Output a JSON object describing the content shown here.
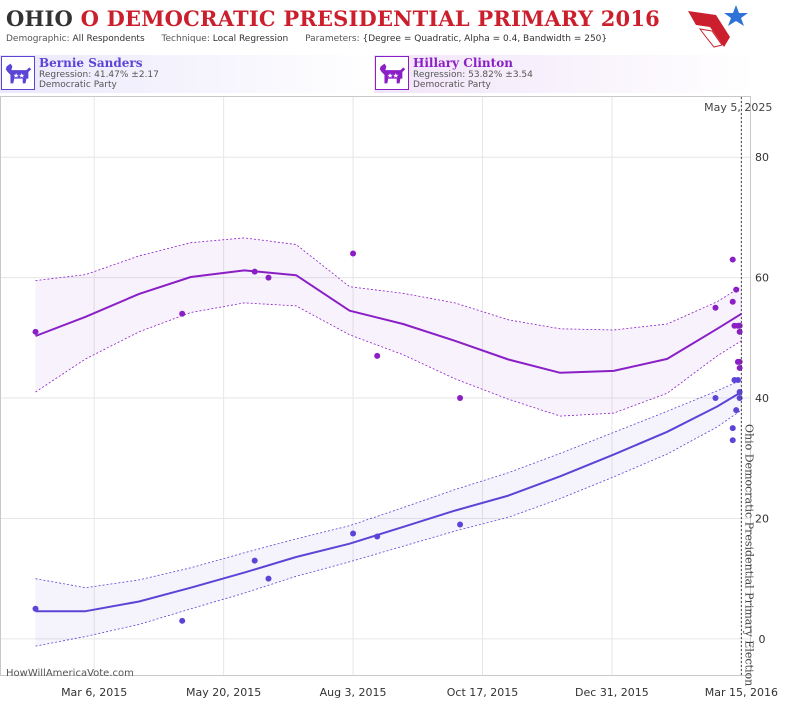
{
  "header": {
    "title_state": "OHIO",
    "title_rest": "O DEMOCRATIC PRESIDENTIAL PRIMARY 2016",
    "demographic_label": "Demographic:",
    "demographic_value": "All Respondents",
    "technique_label": "Technique:",
    "technique_value": "Local Regression",
    "parameters_label": "Parameters:",
    "parameters_value": "{Degree = Quadratic, Alpha = 0.4, Bandwidth = 250}"
  },
  "legend": [
    {
      "name": "Bernie Sanders",
      "regression": "Regression: 41.47% ±2.17",
      "party": "Democratic Party",
      "color": "#5a45d6"
    },
    {
      "name": "Hillary Clinton",
      "regression": "Regression: 53.82% ±3.54",
      "party": "Democratic Party",
      "color": "#8a1fc6"
    }
  ],
  "watermark": "HowWillAmericaVote.com",
  "colors": {
    "title_red": "#cc1f2d",
    "sanders": "#5a45d6",
    "clinton": "#8a1fc6",
    "grid": "#e6e6e6"
  },
  "chart_data": {
    "type": "scatter",
    "x_axis_type": "date",
    "xlim": [
      "2015-01-11",
      "2016-03-20"
    ],
    "ylim": [
      -6,
      90
    ],
    "x_ticks": [
      "2015-03-06",
      "2015-05-20",
      "2015-08-03",
      "2015-10-17",
      "2015-12-31",
      "2016-03-15"
    ],
    "x_tick_labels": [
      "Mar 6, 2015",
      "May 20, 2015",
      "Aug 3, 2015",
      "Oct 17, 2015",
      "Dec 31, 2015",
      "Mar 15, 2016"
    ],
    "y_ticks": [
      0,
      20,
      40,
      60,
      80
    ],
    "grid": true,
    "annotations": [
      {
        "date": "2016-03-15",
        "text": "Ohio Democratic Presidential Primary Election"
      },
      {
        "date": "2016-03-15",
        "text": "May 5, 2025"
      }
    ],
    "series": [
      {
        "name": "Hillary Clinton",
        "color": "#8a1fc6",
        "points": [
          {
            "x": "2015-01-31",
            "y": 51
          },
          {
            "x": "2015-04-26",
            "y": 54
          },
          {
            "x": "2015-06-07",
            "y": 61
          },
          {
            "x": "2015-06-15",
            "y": 60
          },
          {
            "x": "2015-08-03",
            "y": 64
          },
          {
            "x": "2015-08-17",
            "y": 47
          },
          {
            "x": "2015-10-04",
            "y": 40
          },
          {
            "x": "2016-02-29",
            "y": 55
          },
          {
            "x": "2016-03-10",
            "y": 63
          },
          {
            "x": "2016-03-10",
            "y": 56
          },
          {
            "x": "2016-03-11",
            "y": 52
          },
          {
            "x": "2016-03-12",
            "y": 58
          },
          {
            "x": "2016-03-13",
            "y": 52
          },
          {
            "x": "2016-03-13",
            "y": 46
          },
          {
            "x": "2016-03-14",
            "y": 52
          },
          {
            "x": "2016-03-14",
            "y": 51
          },
          {
            "x": "2016-03-14",
            "y": 46
          },
          {
            "x": "2016-03-14",
            "y": 45
          }
        ],
        "regression": [
          {
            "x": "2015-01-31",
            "y": 50.3
          },
          {
            "x": "2015-03-01",
            "y": 53.5
          },
          {
            "x": "2015-04-01",
            "y": 57.3
          },
          {
            "x": "2015-05-01",
            "y": 60.1
          },
          {
            "x": "2015-06-01",
            "y": 61.2
          },
          {
            "x": "2015-07-01",
            "y": 60.4
          },
          {
            "x": "2015-08-01",
            "y": 54.5
          },
          {
            "x": "2015-09-01",
            "y": 52.3
          },
          {
            "x": "2015-10-01",
            "y": 49.5
          },
          {
            "x": "2015-11-01",
            "y": 46.4
          },
          {
            "x": "2015-12-01",
            "y": 44.2
          },
          {
            "x": "2016-01-01",
            "y": 44.5
          },
          {
            "x": "2016-02-01",
            "y": 46.5
          },
          {
            "x": "2016-03-01",
            "y": 51.5
          },
          {
            "x": "2016-03-15",
            "y": 54.0
          }
        ],
        "upper": [
          {
            "x": "2015-01-31",
            "y": 59.5
          },
          {
            "x": "2015-03-01",
            "y": 60.5
          },
          {
            "x": "2015-04-01",
            "y": 63.6
          },
          {
            "x": "2015-05-01",
            "y": 65.8
          },
          {
            "x": "2015-06-01",
            "y": 66.6
          },
          {
            "x": "2015-07-01",
            "y": 65.5
          },
          {
            "x": "2015-08-01",
            "y": 58.5
          },
          {
            "x": "2015-09-01",
            "y": 57.4
          },
          {
            "x": "2015-10-01",
            "y": 55.8
          },
          {
            "x": "2015-11-01",
            "y": 53.0
          },
          {
            "x": "2015-12-01",
            "y": 51.5
          },
          {
            "x": "2016-01-01",
            "y": 51.3
          },
          {
            "x": "2016-02-01",
            "y": 52.3
          },
          {
            "x": "2016-03-01",
            "y": 56.0
          },
          {
            "x": "2016-03-15",
            "y": 58.5
          }
        ],
        "lower": [
          {
            "x": "2015-01-31",
            "y": 41.0
          },
          {
            "x": "2015-03-01",
            "y": 46.5
          },
          {
            "x": "2015-04-01",
            "y": 51.0
          },
          {
            "x": "2015-05-01",
            "y": 54.2
          },
          {
            "x": "2015-06-01",
            "y": 55.8
          },
          {
            "x": "2015-07-01",
            "y": 55.3
          },
          {
            "x": "2015-08-01",
            "y": 50.5
          },
          {
            "x": "2015-09-01",
            "y": 47.2
          },
          {
            "x": "2015-10-01",
            "y": 43.2
          },
          {
            "x": "2015-11-01",
            "y": 39.8
          },
          {
            "x": "2015-12-01",
            "y": 37.0
          },
          {
            "x": "2016-01-01",
            "y": 37.5
          },
          {
            "x": "2016-02-01",
            "y": 40.8
          },
          {
            "x": "2016-03-01",
            "y": 47.0
          },
          {
            "x": "2016-03-15",
            "y": 49.5
          }
        ]
      },
      {
        "name": "Bernie Sanders",
        "color": "#5a45d6",
        "points": [
          {
            "x": "2015-01-31",
            "y": 5
          },
          {
            "x": "2015-04-26",
            "y": 3
          },
          {
            "x": "2015-06-07",
            "y": 13
          },
          {
            "x": "2015-06-15",
            "y": 10
          },
          {
            "x": "2015-08-03",
            "y": 17.5
          },
          {
            "x": "2015-08-17",
            "y": 17
          },
          {
            "x": "2015-10-04",
            "y": 19
          },
          {
            "x": "2016-02-29",
            "y": 40
          },
          {
            "x": "2016-03-10",
            "y": 35
          },
          {
            "x": "2016-03-10",
            "y": 33
          },
          {
            "x": "2016-03-11",
            "y": 43
          },
          {
            "x": "2016-03-12",
            "y": 38
          },
          {
            "x": "2016-03-13",
            "y": 43
          },
          {
            "x": "2016-03-14",
            "y": 41
          },
          {
            "x": "2016-03-14",
            "y": 40
          }
        ],
        "regression": [
          {
            "x": "2015-01-31",
            "y": 4.6
          },
          {
            "x": "2015-03-01",
            "y": 4.6
          },
          {
            "x": "2015-04-01",
            "y": 6.2
          },
          {
            "x": "2015-05-01",
            "y": 8.5
          },
          {
            "x": "2015-06-01",
            "y": 11.0
          },
          {
            "x": "2015-07-01",
            "y": 13.6
          },
          {
            "x": "2015-08-01",
            "y": 15.8
          },
          {
            "x": "2015-09-01",
            "y": 18.6
          },
          {
            "x": "2015-10-01",
            "y": 21.3
          },
          {
            "x": "2015-11-01",
            "y": 23.8
          },
          {
            "x": "2015-12-01",
            "y": 27.0
          },
          {
            "x": "2016-01-01",
            "y": 30.6
          },
          {
            "x": "2016-02-01",
            "y": 34.4
          },
          {
            "x": "2016-03-01",
            "y": 38.6
          },
          {
            "x": "2016-03-15",
            "y": 41.0
          }
        ],
        "upper": [
          {
            "x": "2015-01-31",
            "y": 10.0
          },
          {
            "x": "2015-03-01",
            "y": 8.5
          },
          {
            "x": "2015-04-01",
            "y": 9.8
          },
          {
            "x": "2015-05-01",
            "y": 11.8
          },
          {
            "x": "2015-06-01",
            "y": 14.3
          },
          {
            "x": "2015-07-01",
            "y": 16.6
          },
          {
            "x": "2015-08-01",
            "y": 18.8
          },
          {
            "x": "2015-09-01",
            "y": 21.8
          },
          {
            "x": "2015-10-01",
            "y": 24.8
          },
          {
            "x": "2015-11-01",
            "y": 27.6
          },
          {
            "x": "2015-12-01",
            "y": 30.8
          },
          {
            "x": "2016-01-01",
            "y": 34.3
          },
          {
            "x": "2016-02-01",
            "y": 37.8
          },
          {
            "x": "2016-03-01",
            "y": 41.2
          },
          {
            "x": "2016-03-15",
            "y": 43.0
          }
        ],
        "lower": [
          {
            "x": "2015-01-31",
            "y": -1.2
          },
          {
            "x": "2015-03-01",
            "y": 0.4
          },
          {
            "x": "2015-04-01",
            "y": 2.4
          },
          {
            "x": "2015-05-01",
            "y": 5.0
          },
          {
            "x": "2015-06-01",
            "y": 7.6
          },
          {
            "x": "2015-07-01",
            "y": 10.4
          },
          {
            "x": "2015-08-01",
            "y": 12.8
          },
          {
            "x": "2015-09-01",
            "y": 15.4
          },
          {
            "x": "2015-10-01",
            "y": 17.9
          },
          {
            "x": "2015-11-01",
            "y": 20.2
          },
          {
            "x": "2015-12-01",
            "y": 23.3
          },
          {
            "x": "2016-01-01",
            "y": 26.9
          },
          {
            "x": "2016-02-01",
            "y": 30.7
          },
          {
            "x": "2016-03-01",
            "y": 35.2
          },
          {
            "x": "2016-03-15",
            "y": 38.0
          }
        ]
      }
    ]
  }
}
